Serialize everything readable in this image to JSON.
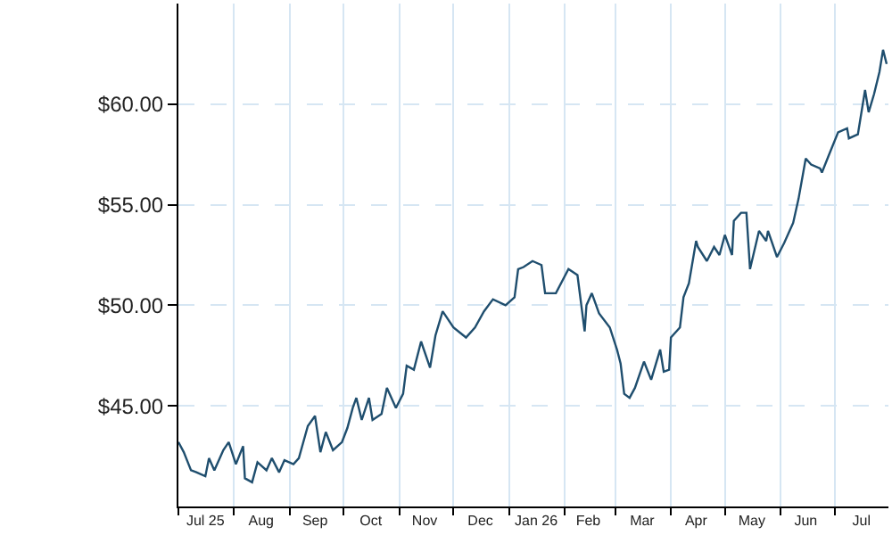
{
  "chart_data": {
    "type": "line",
    "ylim": [
      40,
      65
    ],
    "xlim": [
      "2025-07-01",
      "2026-07-31"
    ],
    "yticks": [
      {
        "value": 45,
        "label": "$45.00"
      },
      {
        "value": 50,
        "label": "$50.00"
      },
      {
        "value": 55,
        "label": "$55.00"
      },
      {
        "value": 60,
        "label": "$60.00"
      }
    ],
    "xticks": [
      {
        "value": "2025-07-16",
        "label": "Jul 25"
      },
      {
        "value": "2025-08-16",
        "label": "Aug"
      },
      {
        "value": "2025-09-15",
        "label": "Sep"
      },
      {
        "value": "2025-10-16",
        "label": "Oct"
      },
      {
        "value": "2025-11-15",
        "label": "Nov"
      },
      {
        "value": "2025-12-16",
        "label": "Dec"
      },
      {
        "value": "2026-01-16",
        "label": "Jan 26"
      },
      {
        "value": "2026-02-14",
        "label": "Feb"
      },
      {
        "value": "2026-03-16",
        "label": "Mar"
      },
      {
        "value": "2026-04-15",
        "label": "Apr"
      },
      {
        "value": "2026-05-16",
        "label": "May"
      },
      {
        "value": "2026-06-15",
        "label": "Jun"
      },
      {
        "value": "2026-07-16",
        "label": "Jul"
      }
    ],
    "grid": true,
    "marker": "none",
    "line_style": "solid",
    "x": [
      "2025-07-01",
      "2025-07-04",
      "2025-07-08",
      "2025-07-11",
      "2025-07-16",
      "2025-07-18",
      "2025-07-21",
      "2025-07-26",
      "2025-07-29",
      "2025-08-02",
      "2025-08-06",
      "2025-08-07",
      "2025-08-11",
      "2025-08-14",
      "2025-08-19",
      "2025-08-22",
      "2025-08-26",
      "2025-08-29",
      "2025-09-03",
      "2025-09-06",
      "2025-09-11",
      "2025-09-15",
      "2025-09-18",
      "2025-09-21",
      "2025-09-25",
      "2025-09-30",
      "2025-10-03",
      "2025-10-06",
      "2025-10-08",
      "2025-10-11",
      "2025-10-15",
      "2025-10-17",
      "2025-10-22",
      "2025-10-25",
      "2025-10-30",
      "2025-11-03",
      "2025-11-05",
      "2025-11-09",
      "2025-11-13",
      "2025-11-18",
      "2025-11-21",
      "2025-11-25",
      "2025-12-01",
      "2025-12-08",
      "2025-12-13",
      "2025-12-18",
      "2025-12-23",
      "2025-12-30",
      "2026-01-04",
      "2026-01-06",
      "2026-01-09",
      "2026-01-14",
      "2026-01-19",
      "2026-01-21",
      "2026-01-27",
      "2026-02-03",
      "2026-02-08",
      "2026-02-12",
      "2026-02-13",
      "2026-02-16",
      "2026-02-20",
      "2026-02-26",
      "2026-03-02",
      "2026-03-04",
      "2026-03-06",
      "2026-03-09",
      "2026-03-12",
      "2026-03-17",
      "2026-03-21",
      "2026-03-26",
      "2026-03-28",
      "2026-03-31",
      "2026-04-01",
      "2026-04-06",
      "2026-04-08",
      "2026-04-11",
      "2026-04-15",
      "2026-04-16",
      "2026-04-21",
      "2026-04-25",
      "2026-04-28",
      "2026-05-01",
      "2026-05-05",
      "2026-05-06",
      "2026-05-10",
      "2026-05-13",
      "2026-05-15",
      "2026-05-20",
      "2026-05-24",
      "2026-05-25",
      "2026-05-30",
      "2026-06-03",
      "2026-06-08",
      "2026-06-11",
      "2026-06-15",
      "2026-06-18",
      "2026-06-23",
      "2026-06-24",
      "2026-06-28",
      "2026-07-03",
      "2026-07-08",
      "2026-07-09",
      "2026-07-14",
      "2026-07-18",
      "2026-07-20",
      "2026-07-23",
      "2026-07-26",
      "2026-07-28",
      "2026-07-30"
    ],
    "series": [
      {
        "color": "#1f4e6e",
        "values": [
          43.2,
          42.7,
          41.8,
          41.7,
          41.5,
          42.4,
          41.8,
          42.8,
          43.2,
          42.1,
          43.0,
          41.4,
          41.2,
          42.2,
          41.8,
          42.4,
          41.7,
          42.3,
          42.1,
          42.4,
          44.0,
          44.5,
          42.7,
          43.7,
          42.8,
          43.2,
          43.9,
          44.9,
          45.4,
          44.3,
          45.4,
          44.3,
          44.6,
          45.9,
          44.9,
          45.6,
          47.0,
          46.8,
          48.2,
          46.9,
          48.5,
          49.7,
          48.9,
          48.4,
          48.9,
          49.7,
          50.3,
          50.0,
          50.4,
          51.8,
          51.9,
          52.2,
          52.0,
          50.6,
          50.6,
          51.8,
          51.5,
          48.7,
          50.0,
          50.6,
          49.6,
          48.9,
          47.8,
          47.1,
          45.6,
          45.4,
          45.9,
          47.2,
          46.3,
          47.8,
          46.7,
          46.8,
          48.4,
          48.9,
          50.4,
          51.1,
          53.2,
          52.9,
          52.2,
          52.9,
          52.5,
          53.5,
          52.5,
          54.2,
          54.6,
          54.6,
          51.8,
          53.7,
          53.2,
          53.7,
          52.4,
          53.1,
          54.1,
          55.3,
          57.3,
          57.0,
          56.8,
          56.6,
          57.5,
          58.6,
          58.8,
          58.3,
          58.5,
          60.7,
          59.6,
          60.5,
          61.6,
          62.7,
          62.0
        ]
      }
    ]
  }
}
